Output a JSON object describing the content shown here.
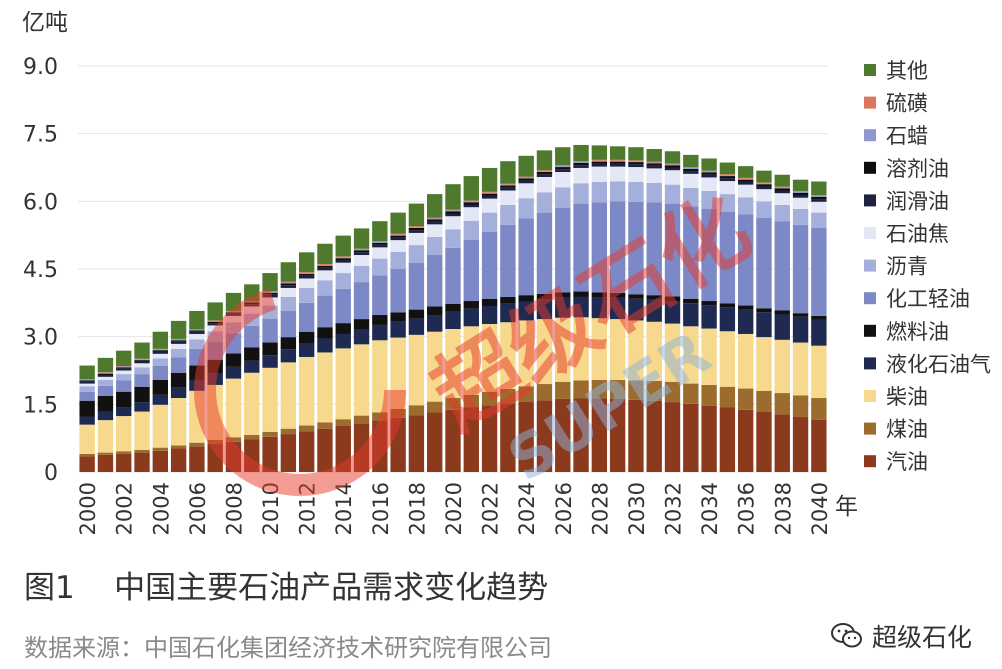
{
  "caption": "图1    中国主要石油产品需求变化趋势",
  "source": "数据来源：中国石化集团经济技术研究院有限公司",
  "brand": "超级石化",
  "watermark": "超级石化",
  "watermark_sub": "SUPER",
  "colors": {
    "grid": "#e6e6e6",
    "text": "#333333",
    "source_text": "#8a8a8a"
  },
  "chart_data": {
    "type": "bar",
    "stacked": true,
    "title": "",
    "ylabel": "亿吨",
    "xlabel": "年",
    "ylim": [
      0,
      9.0
    ],
    "yticks": [
      "0",
      "1.5",
      "3.0",
      "4.5",
      "6.0",
      "7.5",
      "9.0"
    ],
    "grid": true,
    "legend_position": "right",
    "categories": [
      "2000",
      "2001",
      "2002",
      "2003",
      "2004",
      "2005",
      "2006",
      "2007",
      "2008",
      "2009",
      "2010",
      "2011",
      "2012",
      "2013",
      "2014",
      "2015",
      "2016",
      "2017",
      "2018",
      "2019",
      "2020",
      "2021",
      "2022",
      "2023",
      "2024",
      "2025",
      "2026",
      "2027",
      "2028",
      "2029",
      "2030",
      "2031",
      "2032",
      "2033",
      "2034",
      "2035",
      "2036",
      "2037",
      "2038",
      "2039",
      "2040"
    ],
    "xtick_labels": [
      "2000",
      "",
      "2002",
      "",
      "2004",
      "",
      "2006",
      "",
      "2008",
      "",
      "2010",
      "",
      "2012",
      "",
      "2014",
      "",
      "2016",
      "",
      "2018",
      "",
      "2020",
      "",
      "2022",
      "",
      "2024",
      "",
      "2026",
      "",
      "2028",
      "",
      "2030",
      "",
      "2032",
      "",
      "2034",
      "",
      "2036",
      "",
      "2038",
      "",
      "2040"
    ],
    "series": [
      {
        "name": "汽油",
        "color": "#8b3a1e",
        "values": [
          0.35,
          0.38,
          0.4,
          0.43,
          0.47,
          0.52,
          0.57,
          0.62,
          0.67,
          0.72,
          0.78,
          0.84,
          0.9,
          0.96,
          1.02,
          1.08,
          1.14,
          1.2,
          1.26,
          1.32,
          1.38,
          1.43,
          1.48,
          1.52,
          1.56,
          1.59,
          1.62,
          1.63,
          1.63,
          1.62,
          1.6,
          1.58,
          1.55,
          1.51,
          1.47,
          1.43,
          1.38,
          1.33,
          1.28,
          1.22,
          1.16
        ]
      },
      {
        "name": "煤油",
        "color": "#9c6b2e",
        "values": [
          0.05,
          0.05,
          0.06,
          0.06,
          0.07,
          0.07,
          0.08,
          0.09,
          0.1,
          0.1,
          0.11,
          0.12,
          0.13,
          0.14,
          0.15,
          0.17,
          0.18,
          0.2,
          0.22,
          0.24,
          0.26,
          0.28,
          0.3,
          0.32,
          0.34,
          0.36,
          0.38,
          0.4,
          0.41,
          0.42,
          0.43,
          0.44,
          0.45,
          0.45,
          0.46,
          0.46,
          0.47,
          0.47,
          0.47,
          0.48,
          0.48
        ]
      },
      {
        "name": "柴油",
        "color": "#f6d98c",
        "values": [
          0.65,
          0.72,
          0.78,
          0.85,
          0.95,
          1.05,
          1.15,
          1.22,
          1.3,
          1.38,
          1.42,
          1.47,
          1.52,
          1.55,
          1.57,
          1.58,
          1.6,
          1.58,
          1.56,
          1.55,
          1.53,
          1.52,
          1.5,
          1.48,
          1.46,
          1.44,
          1.42,
          1.4,
          1.37,
          1.35,
          1.33,
          1.31,
          1.29,
          1.27,
          1.25,
          1.23,
          1.21,
          1.19,
          1.18,
          1.17,
          1.16
        ]
      },
      {
        "name": "液化石油气",
        "color": "#1e2a52",
        "values": [
          0.18,
          0.19,
          0.2,
          0.21,
          0.22,
          0.23,
          0.24,
          0.25,
          0.26,
          0.27,
          0.28,
          0.29,
          0.3,
          0.31,
          0.32,
          0.33,
          0.34,
          0.35,
          0.36,
          0.37,
          0.38,
          0.39,
          0.4,
          0.41,
          0.42,
          0.43,
          0.44,
          0.45,
          0.46,
          0.47,
          0.48,
          0.49,
          0.5,
          0.51,
          0.52,
          0.53,
          0.54,
          0.55,
          0.56,
          0.57,
          0.58
        ]
      },
      {
        "name": "燃料油",
        "color": "#111111",
        "values": [
          0.35,
          0.35,
          0.34,
          0.34,
          0.33,
          0.33,
          0.32,
          0.31,
          0.3,
          0.29,
          0.28,
          0.27,
          0.26,
          0.25,
          0.24,
          0.23,
          0.22,
          0.21,
          0.2,
          0.19,
          0.18,
          0.17,
          0.16,
          0.15,
          0.14,
          0.13,
          0.12,
          0.12,
          0.11,
          0.11,
          0.1,
          0.1,
          0.1,
          0.1,
          0.09,
          0.09,
          0.09,
          0.09,
          0.09,
          0.08,
          0.08
        ]
      },
      {
        "name": "化工轻油",
        "color": "#7d88c7",
        "values": [
          0.2,
          0.22,
          0.25,
          0.28,
          0.31,
          0.34,
          0.37,
          0.4,
          0.44,
          0.48,
          0.53,
          0.58,
          0.64,
          0.7,
          0.76,
          0.82,
          0.88,
          0.96,
          1.04,
          1.14,
          1.24,
          1.36,
          1.48,
          1.6,
          1.7,
          1.8,
          1.88,
          1.95,
          2.0,
          2.03,
          2.05,
          2.06,
          2.06,
          2.05,
          2.04,
          2.03,
          2.02,
          2.0,
          1.98,
          1.96,
          1.95
        ]
      },
      {
        "name": "沥青",
        "color": "#a5afdc",
        "values": [
          0.12,
          0.13,
          0.14,
          0.15,
          0.17,
          0.19,
          0.21,
          0.23,
          0.25,
          0.27,
          0.29,
          0.31,
          0.33,
          0.34,
          0.35,
          0.36,
          0.37,
          0.38,
          0.39,
          0.4,
          0.41,
          0.42,
          0.43,
          0.44,
          0.45,
          0.45,
          0.45,
          0.45,
          0.45,
          0.44,
          0.44,
          0.43,
          0.42,
          0.41,
          0.4,
          0.39,
          0.38,
          0.37,
          0.36,
          0.35,
          0.34
        ]
      },
      {
        "name": "石油焦",
        "color": "#e4e7f6",
        "values": [
          0.06,
          0.07,
          0.08,
          0.09,
          0.1,
          0.11,
          0.12,
          0.13,
          0.14,
          0.16,
          0.18,
          0.2,
          0.21,
          0.22,
          0.23,
          0.24,
          0.25,
          0.26,
          0.27,
          0.28,
          0.29,
          0.3,
          0.31,
          0.32,
          0.33,
          0.34,
          0.34,
          0.34,
          0.34,
          0.33,
          0.33,
          0.32,
          0.32,
          0.31,
          0.3,
          0.29,
          0.28,
          0.27,
          0.26,
          0.25,
          0.24
        ]
      },
      {
        "name": "润滑油",
        "color": "#1c2240",
        "values": [
          0.04,
          0.04,
          0.04,
          0.04,
          0.05,
          0.05,
          0.05,
          0.05,
          0.05,
          0.05,
          0.06,
          0.06,
          0.06,
          0.06,
          0.06,
          0.06,
          0.06,
          0.06,
          0.06,
          0.06,
          0.06,
          0.06,
          0.06,
          0.06,
          0.06,
          0.06,
          0.06,
          0.06,
          0.06,
          0.06,
          0.06,
          0.06,
          0.06,
          0.06,
          0.06,
          0.06,
          0.06,
          0.06,
          0.06,
          0.06,
          0.06
        ]
      },
      {
        "name": "溶剂油",
        "color": "#0d0d0d",
        "values": [
          0.03,
          0.03,
          0.03,
          0.03,
          0.03,
          0.03,
          0.03,
          0.03,
          0.03,
          0.04,
          0.04,
          0.04,
          0.04,
          0.04,
          0.04,
          0.04,
          0.04,
          0.04,
          0.05,
          0.05,
          0.05,
          0.05,
          0.05,
          0.05,
          0.05,
          0.05,
          0.05,
          0.05,
          0.05,
          0.05,
          0.05,
          0.05,
          0.05,
          0.05,
          0.05,
          0.05,
          0.05,
          0.05,
          0.05,
          0.05,
          0.05
        ]
      },
      {
        "name": "石蜡",
        "color": "#8f98cf",
        "values": [
          0.02,
          0.02,
          0.02,
          0.02,
          0.02,
          0.02,
          0.02,
          0.02,
          0.02,
          0.02,
          0.02,
          0.02,
          0.02,
          0.02,
          0.02,
          0.02,
          0.02,
          0.02,
          0.02,
          0.02,
          0.02,
          0.02,
          0.02,
          0.02,
          0.02,
          0.02,
          0.02,
          0.02,
          0.02,
          0.02,
          0.02,
          0.02,
          0.02,
          0.02,
          0.02,
          0.02,
          0.02,
          0.02,
          0.02,
          0.02,
          0.02
        ]
      },
      {
        "name": "硫磺",
        "color": "#d9785a",
        "values": [
          0.01,
          0.01,
          0.01,
          0.01,
          0.01,
          0.01,
          0.01,
          0.01,
          0.01,
          0.01,
          0.02,
          0.02,
          0.02,
          0.02,
          0.02,
          0.02,
          0.02,
          0.02,
          0.02,
          0.02,
          0.02,
          0.02,
          0.02,
          0.02,
          0.02,
          0.02,
          0.02,
          0.02,
          0.02,
          0.02,
          0.02,
          0.02,
          0.02,
          0.02,
          0.02,
          0.02,
          0.02,
          0.02,
          0.02,
          0.02,
          0.02
        ]
      },
      {
        "name": "其他",
        "color": "#4f7a2e",
        "values": [
          0.3,
          0.32,
          0.34,
          0.36,
          0.38,
          0.4,
          0.4,
          0.4,
          0.4,
          0.37,
          0.4,
          0.43,
          0.44,
          0.45,
          0.46,
          0.45,
          0.44,
          0.47,
          0.5,
          0.52,
          0.56,
          0.54,
          0.53,
          0.5,
          0.46,
          0.44,
          0.4,
          0.36,
          0.32,
          0.3,
          0.29,
          0.28,
          0.27,
          0.27,
          0.27,
          0.26,
          0.26,
          0.26,
          0.26,
          0.25,
          0.3
        ]
      }
    ]
  }
}
